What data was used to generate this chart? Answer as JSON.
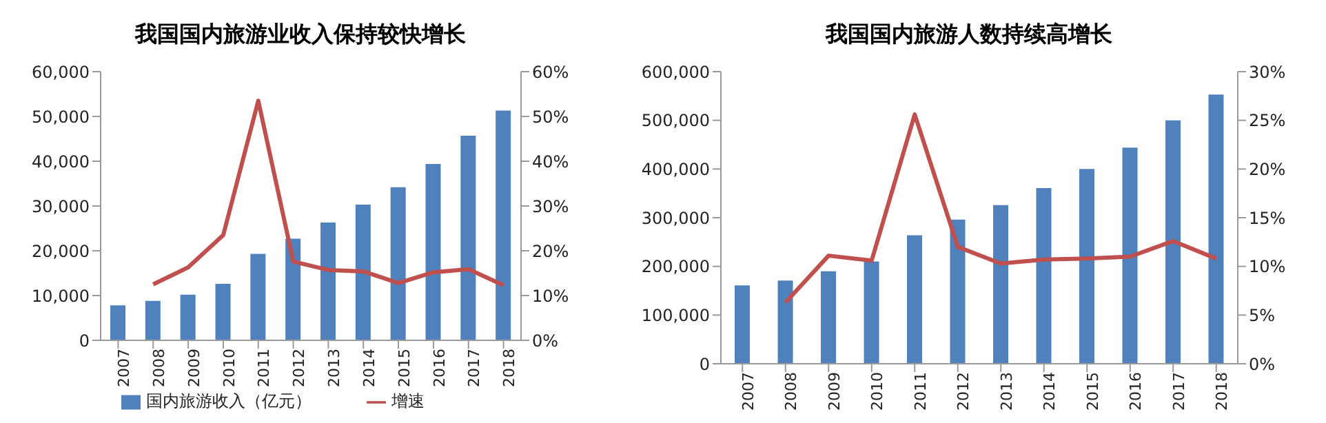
{
  "chart_data": [
    {
      "type": "bar",
      "title": "我国国内旅游业收入保持较快增长",
      "categories": [
        "2007",
        "2008",
        "2009",
        "2010",
        "2011",
        "2012",
        "2013",
        "2014",
        "2015",
        "2016",
        "2017",
        "2018"
      ],
      "series": [
        {
          "name": "国内旅游收入（亿元）",
          "color": "#4f81bd",
          "values": [
            7800,
            8800,
            10200,
            12600,
            19300,
            22700,
            26300,
            30300,
            34200,
            39400,
            45700,
            51300
          ]
        },
        {
          "name": "增速",
          "type": "line",
          "axis": "y2",
          "color": "#c0504d",
          "values": [
            null,
            12.5,
            16.3,
            23.5,
            53.5,
            17.6,
            15.7,
            15.4,
            12.8,
            15.2,
            15.9,
            12.3
          ]
        }
      ],
      "ylim": [
        0,
        60000
      ],
      "yticks": [
        0,
        {
          "value": 10000,
          "label": "10,000"
        },
        {
          "value": 20000,
          "label": "20,000"
        },
        {
          "value": 30000,
          "label": "30,000"
        },
        {
          "value": 40000,
          "label": "40,000"
        },
        {
          "value": 50000,
          "label": "50,000"
        },
        {
          "value": 60000,
          "label": "60,000"
        }
      ],
      "y2lim": [
        0,
        60
      ],
      "y2ticks": [
        {
          "value": 0,
          "label": "0%"
        },
        {
          "value": 10,
          "label": "10%"
        },
        {
          "value": 20,
          "label": "20%"
        },
        {
          "value": 30,
          "label": "30%"
        },
        {
          "value": 40,
          "label": "40%"
        },
        {
          "value": 50,
          "label": "50%"
        },
        {
          "value": 60,
          "label": "60%"
        }
      ],
      "grid": false,
      "legend": "bottom",
      "marker": "none"
    },
    {
      "type": "bar",
      "title": "我国国内旅游人数持续高增长",
      "categories": [
        "2007",
        "2008",
        "2009",
        "2010",
        "2011",
        "2012",
        "2013",
        "2014",
        "2015",
        "2016",
        "2017",
        "2018"
      ],
      "series": [
        {
          "color": "#4f81bd",
          "values": [
            161000,
            171000,
            190000,
            210000,
            264000,
            296000,
            326000,
            361000,
            400000,
            444000,
            500000,
            553000
          ]
        },
        {
          "type": "line",
          "axis": "y2",
          "color": "#c0504d",
          "values": [
            null,
            6.3,
            11.1,
            10.6,
            25.6,
            12.0,
            10.3,
            10.7,
            10.8,
            11.0,
            12.6,
            10.8
          ]
        }
      ],
      "ylim": [
        0,
        600000
      ],
      "yticks": [
        0,
        {
          "value": 100000,
          "label": "100,000"
        },
        {
          "value": 200000,
          "label": "200,000"
        },
        {
          "value": 300000,
          "label": "300,000"
        },
        {
          "value": 400000,
          "label": "400,000"
        },
        {
          "value": 500000,
          "label": "500,000"
        },
        {
          "value": 600000,
          "label": "600,000"
        }
      ],
      "y2lim": [
        0,
        30
      ],
      "y2ticks": [
        {
          "value": 0,
          "label": "0%"
        },
        {
          "value": 5,
          "label": "5%"
        },
        {
          "value": 10,
          "label": "10%"
        },
        {
          "value": 15,
          "label": "15%"
        },
        {
          "value": 20,
          "label": "20%"
        },
        {
          "value": 25,
          "label": "25%"
        },
        {
          "value": 30,
          "label": "30%"
        }
      ],
      "grid": false,
      "legend": false,
      "marker": "none"
    }
  ]
}
